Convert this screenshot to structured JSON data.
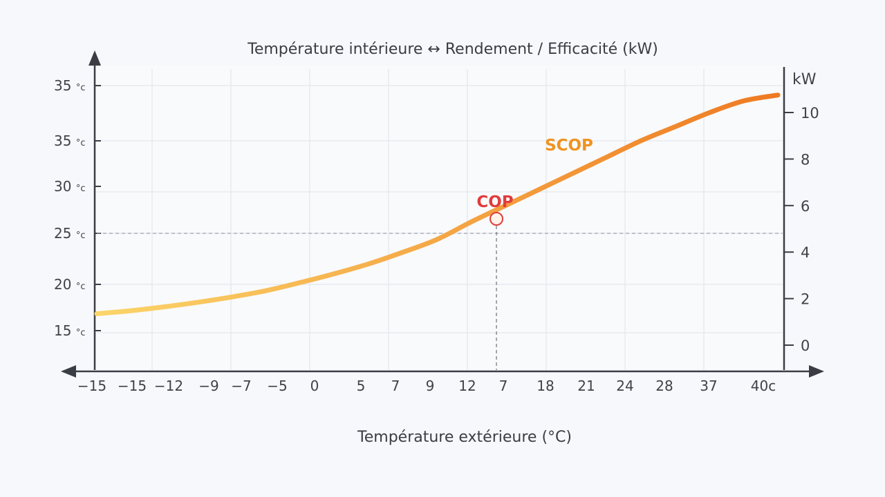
{
  "chart_data": {
    "type": "line",
    "title": "Température intérieure ↔ Rendement / Efficacité (kW)",
    "xlabel": "Température extérieure (°C)",
    "x_tick_labels": [
      "−15",
      "−15",
      "−12",
      "−9",
      "−7",
      "−5",
      "0",
      "5",
      "7",
      "9",
      "12",
      "7",
      "18",
      "21",
      "24",
      "28",
      "37",
      "40c"
    ],
    "y_left_ticks": [
      {
        "value": "35",
        "unit": "°c"
      },
      {
        "value": "35",
        "unit": "°c"
      },
      {
        "value": "30",
        "unit": "°c"
      },
      {
        "value": "25",
        "unit": "°c"
      },
      {
        "value": "20",
        "unit": "°c"
      },
      {
        "value": "15",
        "unit": "°c"
      }
    ],
    "y_right_label": "kW",
    "y_right_ticks": [
      "10",
      "8",
      "6",
      "4",
      "2",
      "0"
    ],
    "y_right_range": [
      0,
      10.7
    ],
    "series": [
      {
        "name": "SCOP",
        "color_start": "#fbd56a",
        "color_end": "#ee7a22",
        "points_kw": [
          [
            0,
            1.35
          ],
          [
            1,
            1.48
          ],
          [
            2,
            1.65
          ],
          [
            3,
            1.85
          ],
          [
            4,
            2.08
          ],
          [
            5,
            2.35
          ],
          [
            6,
            2.7
          ],
          [
            7,
            3.08
          ],
          [
            8,
            3.5
          ],
          [
            9,
            4.0
          ],
          [
            10,
            4.55
          ],
          [
            11,
            5.3
          ],
          [
            12,
            6.0
          ],
          [
            13,
            6.7
          ],
          [
            14,
            7.4
          ],
          [
            15,
            8.1
          ],
          [
            16,
            8.8
          ],
          [
            17,
            9.4
          ],
          [
            18,
            10.0
          ],
          [
            19,
            10.5
          ],
          [
            20,
            10.75
          ]
        ]
      }
    ],
    "annotation": {
      "label": "COP",
      "color": "#e03c3c",
      "x_index": 11,
      "kw": 5.5
    },
    "grid": true,
    "background": "#f7f8fb",
    "axis_color": "#3a3d44",
    "grid_color": "#dfe3ea"
  }
}
